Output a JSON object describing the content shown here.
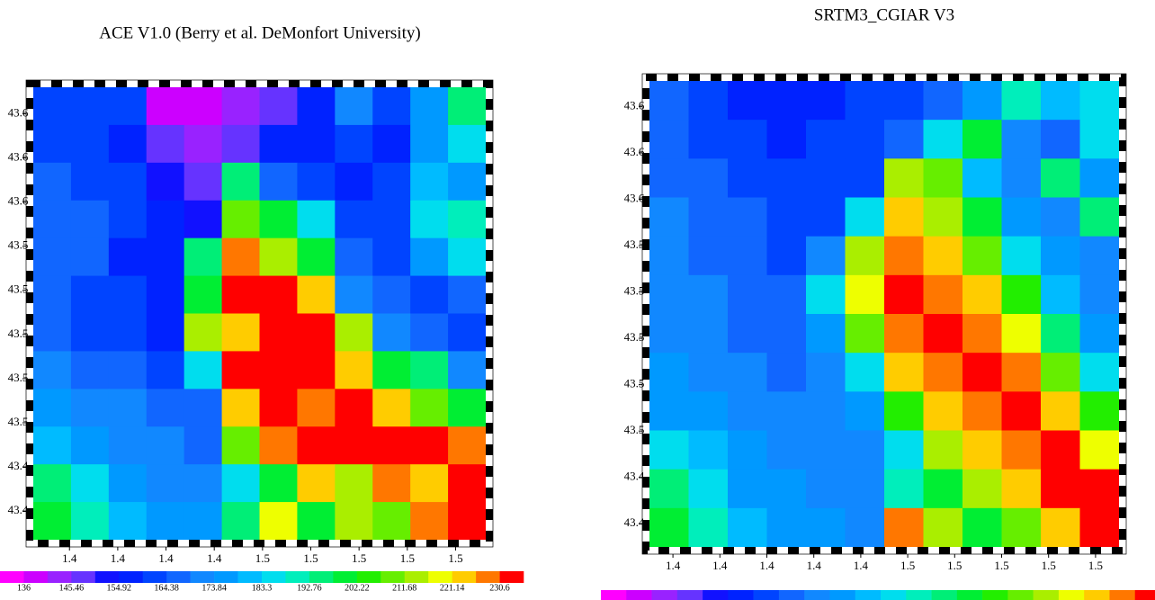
{
  "chart_data": [
    {
      "type": "heatmap",
      "title": "ACE V1.0 (Berry et al. DeMonfort University)",
      "xlim": [
        1.36,
        1.5475
      ],
      "ylim": [
        43.402,
        43.607
      ],
      "xticks": [
        {
          "value": 1.375,
          "label": "1.4"
        },
        {
          "value": 1.395,
          "label": "1.4"
        },
        {
          "value": 1.415,
          "label": "1.4"
        },
        {
          "value": 1.435,
          "label": "1.4"
        },
        {
          "value": 1.455,
          "label": "1.5"
        },
        {
          "value": 1.475,
          "label": "1.5"
        },
        {
          "value": 1.495,
          "label": "1.5"
        },
        {
          "value": 1.515,
          "label": "1.5"
        },
        {
          "value": 1.535,
          "label": "1.5"
        }
      ],
      "yticks": [
        {
          "value": 43.595,
          "label": "43.6"
        },
        {
          "value": 43.575,
          "label": "43.6"
        },
        {
          "value": 43.555,
          "label": "43.6"
        },
        {
          "value": 43.535,
          "label": "43.5"
        },
        {
          "value": 43.515,
          "label": "43.5"
        },
        {
          "value": 43.495,
          "label": "43.5"
        },
        {
          "value": 43.475,
          "label": "43.5"
        },
        {
          "value": 43.455,
          "label": "43.5"
        },
        {
          "value": 43.435,
          "label": "43.4"
        },
        {
          "value": 43.415,
          "label": "43.4"
        }
      ],
      "zlim": [
        131.27,
        235.33
      ],
      "colors": [
        "#ff00ff",
        "#cc00ff",
        "#9922ff",
        "#6633ff",
        "#1111ff",
        "#0022ff",
        "#0044ff",
        "#1166ff",
        "#1188ff",
        "#0099ff",
        "#00bbff",
        "#00ddee",
        "#00eebb",
        "#00ee77",
        "#00ee33",
        "#22ee00",
        "#66ee00",
        "#aaee00",
        "#eeff00",
        "#ffcc00",
        "#ff7700",
        "#ff0000"
      ],
      "colorbar_ticks": [
        136,
        145.46,
        154.92,
        164.38,
        173.84,
        183.3,
        192.76,
        202.22,
        211.68,
        221.14,
        230.6
      ],
      "z": [
        [
          160,
          160,
          160,
          140,
          140,
          145,
          150,
          158,
          170,
          160,
          178,
          195
        ],
        [
          162,
          160,
          158,
          148,
          145,
          150,
          158,
          155,
          160,
          158,
          175,
          185
        ],
        [
          165,
          162,
          160,
          152,
          150,
          195,
          165,
          160,
          158,
          160,
          180,
          178
        ],
        [
          168,
          165,
          160,
          155,
          152,
          210,
          200,
          185,
          162,
          160,
          185,
          190
        ],
        [
          168,
          165,
          158,
          155,
          195,
          230,
          215,
          200,
          165,
          162,
          175,
          185
        ],
        [
          168,
          162,
          160,
          158,
          200,
          235,
          235,
          225,
          170,
          165,
          162,
          165
        ],
        [
          166,
          164,
          160,
          158,
          215,
          225,
          235,
          235,
          215,
          170,
          165,
          162
        ],
        [
          170,
          168,
          165,
          162,
          185,
          235,
          235,
          235,
          225,
          200,
          195,
          170
        ],
        [
          175,
          172,
          170,
          165,
          168,
          225,
          235,
          230,
          235,
          225,
          210,
          200
        ],
        [
          180,
          178,
          172,
          170,
          168,
          210,
          230,
          235,
          235,
          235,
          235,
          230
        ],
        [
          195,
          185,
          175,
          172,
          170,
          185,
          200,
          225,
          215,
          230,
          225,
          235
        ],
        [
          200,
          190,
          180,
          178,
          175,
          195,
          220,
          200,
          215,
          210,
          230,
          235
        ]
      ]
    },
    {
      "type": "heatmap",
      "title": "SRTM3_CGIAR V3",
      "xlim": [
        1.355,
        1.555
      ],
      "ylim": [
        43.405,
        43.606
      ],
      "xticks": [
        {
          "value": 1.365,
          "label": "1.4"
        },
        {
          "value": 1.385,
          "label": "1.4"
        },
        {
          "value": 1.405,
          "label": "1.4"
        },
        {
          "value": 1.425,
          "label": "1.4"
        },
        {
          "value": 1.445,
          "label": "1.4"
        },
        {
          "value": 1.465,
          "label": "1.5"
        },
        {
          "value": 1.485,
          "label": "1.5"
        },
        {
          "value": 1.505,
          "label": "1.5"
        },
        {
          "value": 1.525,
          "label": "1.5"
        },
        {
          "value": 1.545,
          "label": "1.5"
        }
      ],
      "yticks": [
        {
          "value": 43.595,
          "label": "43.6"
        },
        {
          "value": 43.575,
          "label": "43.6"
        },
        {
          "value": 43.555,
          "label": "43.6"
        },
        {
          "value": 43.535,
          "label": "43.5"
        },
        {
          "value": 43.515,
          "label": "43.5"
        },
        {
          "value": 43.495,
          "label": "43.5"
        },
        {
          "value": 43.475,
          "label": "43.5"
        },
        {
          "value": 43.455,
          "label": "43.5"
        },
        {
          "value": 43.435,
          "label": "43.4"
        },
        {
          "value": 43.415,
          "label": "43.4"
        }
      ],
      "zlim": [
        131.27,
        235.33
      ],
      "colors": [
        "#ff00ff",
        "#cc00ff",
        "#9922ff",
        "#6633ff",
        "#1111ff",
        "#0022ff",
        "#0044ff",
        "#1166ff",
        "#1188ff",
        "#0099ff",
        "#00bbff",
        "#00ddee",
        "#00eebb",
        "#00ee77",
        "#00ee33",
        "#22ee00",
        "#66ee00",
        "#aaee00",
        "#eeff00",
        "#ffcc00",
        "#ff7700",
        "#ff0000"
      ],
      "z": [
        [
          165,
          162,
          158,
          155,
          158,
          160,
          160,
          165,
          175,
          190,
          180,
          185
        ],
        [
          165,
          162,
          160,
          158,
          160,
          160,
          165,
          185,
          200,
          170,
          165,
          185
        ],
        [
          168,
          165,
          162,
          160,
          162,
          162,
          215,
          210,
          180,
          170,
          195,
          175
        ],
        [
          170,
          168,
          165,
          162,
          160,
          185,
          225,
          215,
          200,
          175,
          170,
          195
        ],
        [
          170,
          168,
          165,
          162,
          170,
          215,
          230,
          225,
          210,
          185,
          175,
          170
        ],
        [
          172,
          170,
          168,
          165,
          185,
          220,
          235,
          230,
          225,
          205,
          180,
          172
        ],
        [
          172,
          170,
          168,
          168,
          175,
          210,
          230,
          235,
          230,
          220,
          195,
          175
        ],
        [
          175,
          172,
          170,
          168,
          172,
          185,
          225,
          230,
          235,
          230,
          210,
          185
        ],
        [
          178,
          175,
          172,
          170,
          170,
          178,
          205,
          225,
          230,
          235,
          225,
          205
        ],
        [
          185,
          180,
          175,
          172,
          170,
          172,
          185,
          215,
          225,
          230,
          235,
          220
        ],
        [
          195,
          185,
          178,
          175,
          172,
          170,
          190,
          200,
          215,
          225,
          235,
          235
        ],
        [
          200,
          190,
          180,
          178,
          175,
          172,
          230,
          215,
          200,
          210,
          225,
          235
        ]
      ]
    }
  ]
}
